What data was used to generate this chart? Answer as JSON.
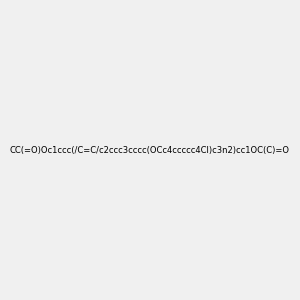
{
  "smiles": "CC(=O)Oc1ccc(/C=C/c2ccc3cccc(OCc4ccccc4Cl)c3n2)cc1OC(C)=O",
  "title": "",
  "background_color": "#f0f0f0",
  "figsize": [
    3.0,
    3.0
  ],
  "dpi": 100
}
